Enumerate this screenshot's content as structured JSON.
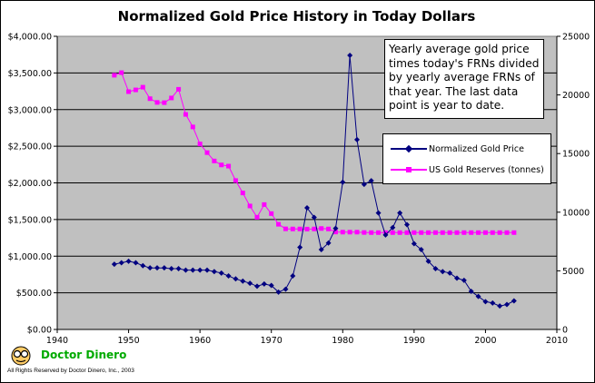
{
  "title": "Normalized Gold Price History in Today Dollars",
  "note": "Yearly average gold price times today's FRNs divided by yearly average FRNs of that year. The last data point is year to date.",
  "legend": {
    "series1": "Normalized Gold Price",
    "series2": "US Gold Reserves (tonnes)"
  },
  "brand": "Doctor Dinero",
  "rights": "All Rights Reserved by Doctor Dinero, Inc., 2003",
  "colors": {
    "plot_bg": "#c0c0c0",
    "series1": "#000080",
    "series2": "#ff00ff",
    "brand": "#00aa00"
  },
  "chart_data": {
    "type": "line",
    "title": "Normalized Gold Price History in Today Dollars",
    "xlim": [
      1940,
      2010
    ],
    "x_ticks": [
      "1940",
      "1950",
      "1960",
      "1970",
      "1980",
      "1990",
      "2000",
      "2010"
    ],
    "ylim_left": [
      0,
      4000
    ],
    "y_ticks_left": [
      "$0.00",
      "$500.00",
      "$1,000.00",
      "$1,500.00",
      "$2,000.00",
      "$2,500.00",
      "$3,000.00",
      "$3,500.00",
      "$4,000.00"
    ],
    "ylim_right": [
      0,
      25000
    ],
    "y_ticks_right": [
      "0",
      "5000",
      "10000",
      "15000",
      "20000",
      "25000"
    ],
    "grid": true,
    "series": [
      {
        "name": "Normalized Gold Price",
        "axis": "left",
        "x": [
          1948,
          1949,
          1950,
          1951,
          1952,
          1953,
          1954,
          1955,
          1956,
          1957,
          1958,
          1959,
          1960,
          1961,
          1962,
          1963,
          1964,
          1965,
          1966,
          1967,
          1968,
          1969,
          1970,
          1971,
          1972,
          1973,
          1974,
          1975,
          1976,
          1977,
          1978,
          1979,
          1980,
          1981,
          1982,
          1983,
          1984,
          1985,
          1986,
          1987,
          1988,
          1989,
          1990,
          1991,
          1992,
          1993,
          1994,
          1995,
          1996,
          1997,
          1998,
          1999,
          2000,
          2001,
          2002,
          2003,
          2004
        ],
        "y": [
          890,
          910,
          930,
          910,
          870,
          840,
          840,
          840,
          830,
          830,
          810,
          810,
          810,
          810,
          790,
          770,
          730,
          690,
          660,
          630,
          590,
          620,
          600,
          510,
          550,
          730,
          1120,
          1660,
          1530,
          1090,
          1180,
          1380,
          2010,
          3740,
          2590,
          1980,
          2030,
          1590,
          1290,
          1390,
          1590,
          1430,
          1170,
          1090,
          930,
          830,
          790,
          770,
          700,
          670,
          520,
          450,
          380,
          360,
          320,
          340,
          390
        ]
      },
      {
        "name": "US Gold Reserves (tonnes)",
        "axis": "right",
        "x": [
          1948,
          1949,
          1950,
          1951,
          1952,
          1953,
          1954,
          1955,
          1956,
          1957,
          1958,
          1959,
          1960,
          1961,
          1962,
          1963,
          1964,
          1965,
          1966,
          1967,
          1968,
          1969,
          1970,
          1971,
          1972,
          1973,
          1974,
          1975,
          1976,
          1977,
          1978,
          1979,
          1980,
          1981,
          1982,
          1983,
          1984,
          1985,
          1986,
          1987,
          1988,
          1989,
          1990,
          1991,
          1992,
          1993,
          1994,
          1995,
          1996,
          1997,
          1998,
          1999,
          2000,
          2001,
          2002,
          2003,
          2004
        ],
        "y": [
          21680,
          21900,
          20280,
          20430,
          20660,
          19680,
          19360,
          19340,
          19740,
          20480,
          18340,
          17270,
          15820,
          15080,
          14370,
          14030,
          13930,
          12700,
          11640,
          10530,
          9570,
          10650,
          9880,
          8970,
          8580,
          8570,
          8570,
          8560,
          8570,
          8610,
          8570,
          8310,
          8300,
          8300,
          8300,
          8270,
          8260,
          8260,
          8260,
          8260,
          8260,
          8260,
          8260,
          8260,
          8260,
          8260,
          8260,
          8260,
          8260,
          8260,
          8260,
          8260,
          8260,
          8260,
          8260,
          8260,
          8260
        ]
      }
    ]
  }
}
